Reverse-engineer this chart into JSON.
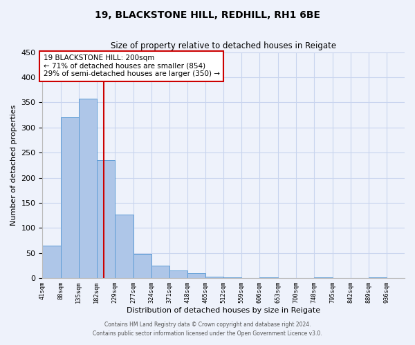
{
  "title_line1": "19, BLACKSTONE HILL, REDHILL, RH1 6BE",
  "title_line2": "Size of property relative to detached houses in Reigate",
  "xlabel": "Distribution of detached houses by size in Reigate",
  "ylabel": "Number of detached properties",
  "bin_edges": [
    41,
    88,
    135,
    182,
    229,
    277,
    324,
    371,
    418,
    465,
    512,
    559,
    606,
    653,
    700,
    748,
    795,
    842,
    889,
    936,
    983
  ],
  "bin_counts": [
    65,
    320,
    357,
    235,
    127,
    48,
    25,
    15,
    10,
    3,
    1,
    0,
    1,
    0,
    0,
    1,
    0,
    0,
    1,
    0
  ],
  "bar_color": "#aec6e8",
  "bar_edge_color": "#5b9bd5",
  "property_size": 200,
  "vline_color": "#cc0000",
  "annotation_line1": "19 BLACKSTONE HILL: 200sqm",
  "annotation_line2": "← 71% of detached houses are smaller (854)",
  "annotation_line3": "29% of semi-detached houses are larger (350) →",
  "annotation_box_color": "#ffffff",
  "annotation_box_edge": "#cc0000",
  "ylim": [
    0,
    450
  ],
  "yticks": [
    0,
    50,
    100,
    150,
    200,
    250,
    300,
    350,
    400,
    450
  ],
  "footer_line1": "Contains HM Land Registry data © Crown copyright and database right 2024.",
  "footer_line2": "Contains public sector information licensed under the Open Government Licence v3.0.",
  "background_color": "#eef2fb",
  "grid_color": "#c8d4ee"
}
